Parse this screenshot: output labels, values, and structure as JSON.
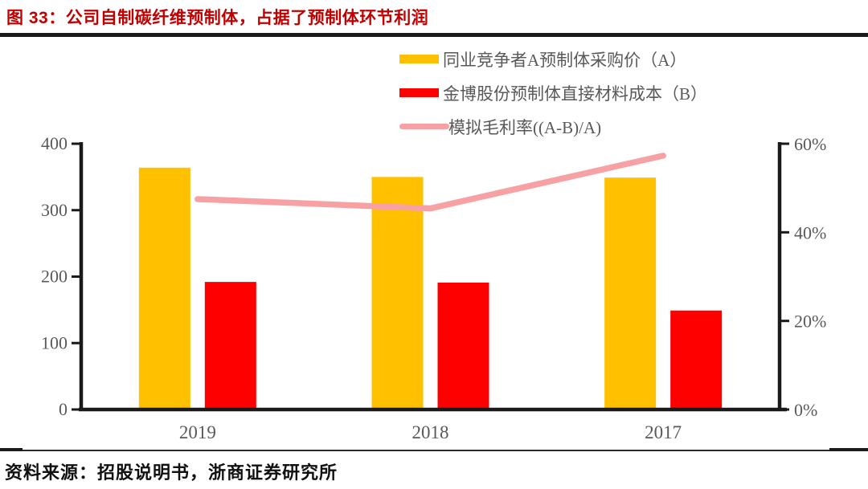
{
  "header": {
    "title": "图 33：公司自制碳纤维预制体，占据了预制体环节利润"
  },
  "footer": {
    "source": "资料来源：招股说明书，浙商证券研究所"
  },
  "colors": {
    "title_red": "#C00000",
    "bar_gold": "#FFC000",
    "bar_red": "#FF0000",
    "line_pink": "#F8A1A4",
    "axis_black": "#1a1a1a",
    "label_gray": "#595959"
  },
  "chart_data": {
    "type": "bar",
    "subtype": "grouped-bars-with-line-dual-axis",
    "categories": [
      "2019",
      "2018",
      "2017"
    ],
    "series": [
      {
        "name": "同业竞争者A预制体采购价（A）",
        "type": "bar",
        "axis": "left",
        "color": "#FFC000",
        "values": [
          364,
          350,
          349
        ]
      },
      {
        "name": "金博股份预制体直接材料成本（B）",
        "type": "bar",
        "axis": "left",
        "color": "#FF0000",
        "values": [
          192,
          191,
          149
        ]
      },
      {
        "name": "模拟毛利率((A-B)/A)",
        "type": "line",
        "axis": "right",
        "color": "#F8A1A4",
        "values": [
          47.5,
          45.4,
          57.3
        ]
      }
    ],
    "left_axis": {
      "min": 0,
      "max": 400,
      "tick_values": [
        0,
        100,
        200,
        300,
        400
      ],
      "tick_labels": [
        "0",
        "100",
        "200",
        "300",
        "400"
      ]
    },
    "right_axis": {
      "min": 0,
      "max": 60,
      "tick_values": [
        0,
        20,
        40,
        60
      ],
      "tick_labels": [
        "0%",
        "20%",
        "40%",
        "60%"
      ]
    },
    "grid": false,
    "legend_position": "top-center"
  }
}
